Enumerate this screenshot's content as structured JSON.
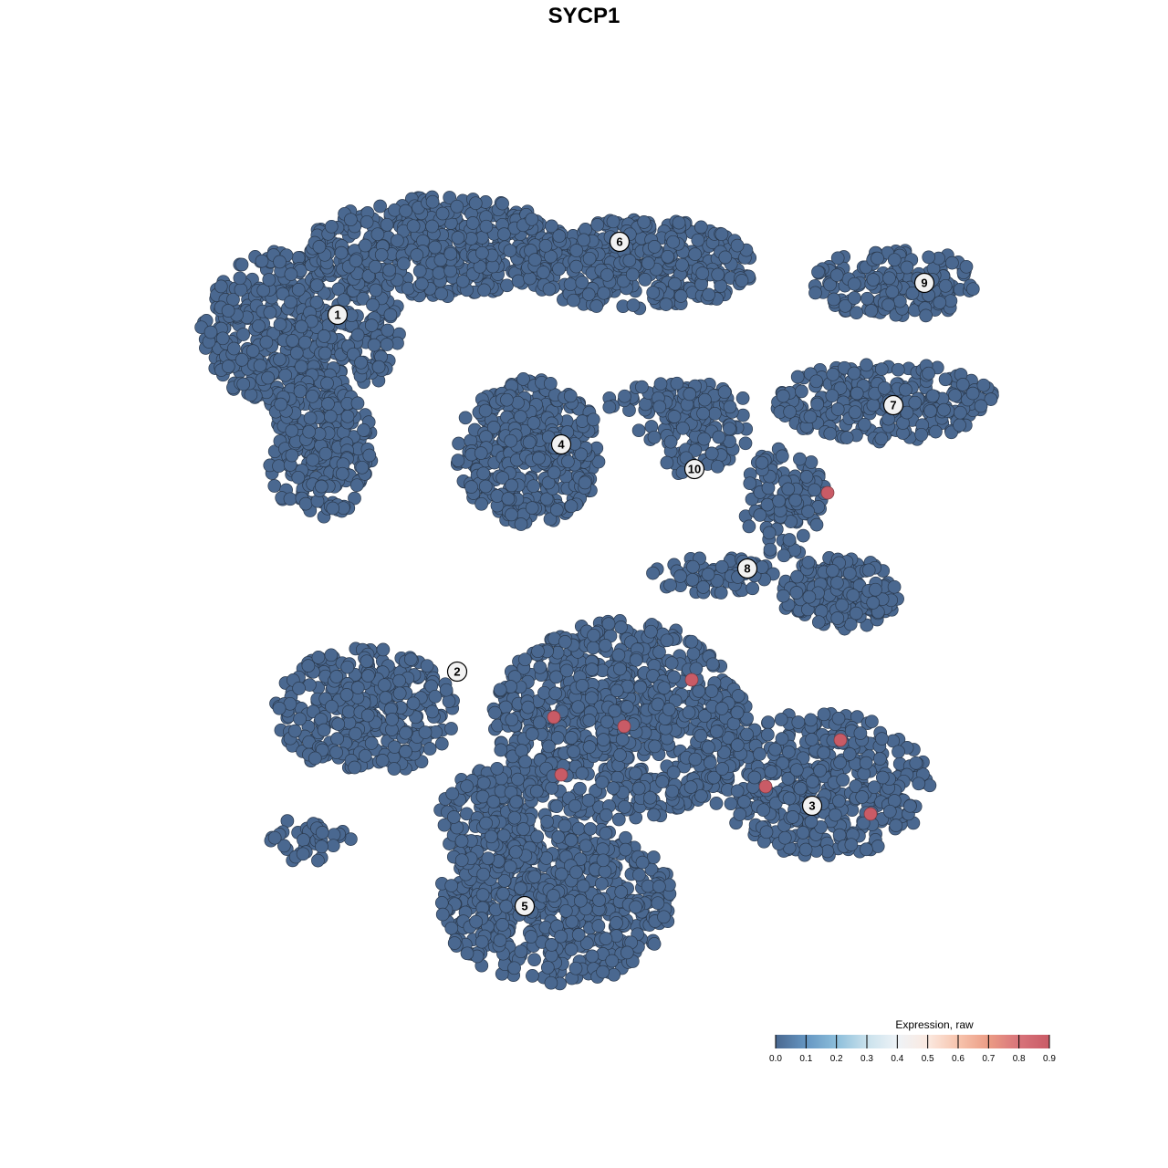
{
  "chart_data": {
    "type": "scatter",
    "title": "SYCP1",
    "xlabel": "",
    "ylabel": "",
    "grid": false,
    "axes_visible": false,
    "xlim": [
      -64,
      64
    ],
    "ylim": [
      -64,
      64
    ],
    "point_fill_low": "#4a6890",
    "point_fill_high": "#c95b66",
    "point_stroke": "#2b3a4e",
    "clusters": [
      {
        "label": "1",
        "label_pos": [
          -27,
          29.5
        ],
        "blobs": [
          [
            -31,
            28,
            11,
            9,
            520
          ],
          [
            -29,
            15,
            6,
            8,
            260
          ]
        ]
      },
      {
        "label": "6",
        "label_pos": [
          3.9,
          37.5
        ],
        "blobs": [
          [
            -16,
            37,
            14,
            5.5,
            480
          ],
          [
            6,
            35,
            13,
            5,
            380
          ]
        ]
      },
      {
        "label": "4",
        "label_pos": [
          -2.5,
          15.3
        ],
        "blobs": [
          [
            -6,
            14.5,
            8,
            8,
            420
          ]
        ]
      },
      {
        "label": "10",
        "label_pos": [
          12.1,
          12.6
        ],
        "blobs": [
          [
            12,
            17,
            6,
            5.5,
            110
          ],
          [
            10,
            20,
            8,
            2,
            60
          ]
        ]
      },
      {
        "label": "9",
        "label_pos": [
          37.3,
          33
        ],
        "blobs": [
          [
            34,
            33,
            9,
            4,
            180
          ]
        ]
      },
      {
        "label": "7",
        "label_pos": [
          33.9,
          19.6
        ],
        "blobs": [
          [
            33,
            20,
            12,
            4.5,
            260
          ]
        ]
      },
      {
        "label": "8",
        "label_pos": [
          17.9,
          1.7
        ],
        "blobs": [
          [
            22,
            9,
            4.5,
            6,
            120
          ],
          [
            28,
            -1,
            6.5,
            4,
            170
          ],
          [
            14,
            1,
            7,
            2,
            70
          ]
        ]
      },
      {
        "label": "2",
        "label_pos": [
          -13.9,
          -9.6
        ],
        "blobs": [
          [
            -24,
            -14,
            10,
            7,
            330
          ],
          [
            -30,
            -28,
            5,
            2.5,
            40
          ]
        ]
      },
      {
        "label": "3",
        "label_pos": [
          25,
          -24.3
        ],
        "blobs": [
          [
            26,
            -22,
            12,
            8,
            420
          ]
        ]
      },
      {
        "label": "5",
        "label_pos": [
          -6.5,
          -35.3
        ],
        "blobs": [
          [
            4,
            -15,
            14,
            11,
            820
          ],
          [
            -3,
            -35,
            13,
            9,
            600
          ],
          [
            -10,
            -26,
            6,
            6,
            160
          ]
        ]
      }
    ],
    "expressing_points": [
      {
        "x": 26.7,
        "y": 10,
        "value": 0.9
      },
      {
        "x": 11.8,
        "y": -10.5,
        "value": 0.9
      },
      {
        "x": -3.3,
        "y": -14.6,
        "value": 0.9
      },
      {
        "x": 4.4,
        "y": -15.6,
        "value": 0.9
      },
      {
        "x": 28.1,
        "y": -17.1,
        "value": 0.9
      },
      {
        "x": -2.5,
        "y": -20.9,
        "value": 0.9
      },
      {
        "x": 19.9,
        "y": -22.2,
        "value": 0.9
      },
      {
        "x": 31.4,
        "y": -25.2,
        "value": 0.9
      }
    ],
    "other_points_value": 0.0,
    "legend": {
      "title": "Expression, raw",
      "placement": "bottom-right",
      "ticks": [
        "0.0",
        "0.1",
        "0.2",
        "0.3",
        "0.4",
        "0.5",
        "0.6",
        "0.7",
        "0.8",
        "0.9"
      ],
      "range": [
        0,
        0.9
      ],
      "colors": [
        "#4a6890",
        "#6596c2",
        "#8cbedb",
        "#c9e1ec",
        "#eef3f7",
        "#fbe9e0",
        "#f7c4ad",
        "#eb9c85",
        "#d8737a",
        "#c95b66"
      ]
    }
  }
}
